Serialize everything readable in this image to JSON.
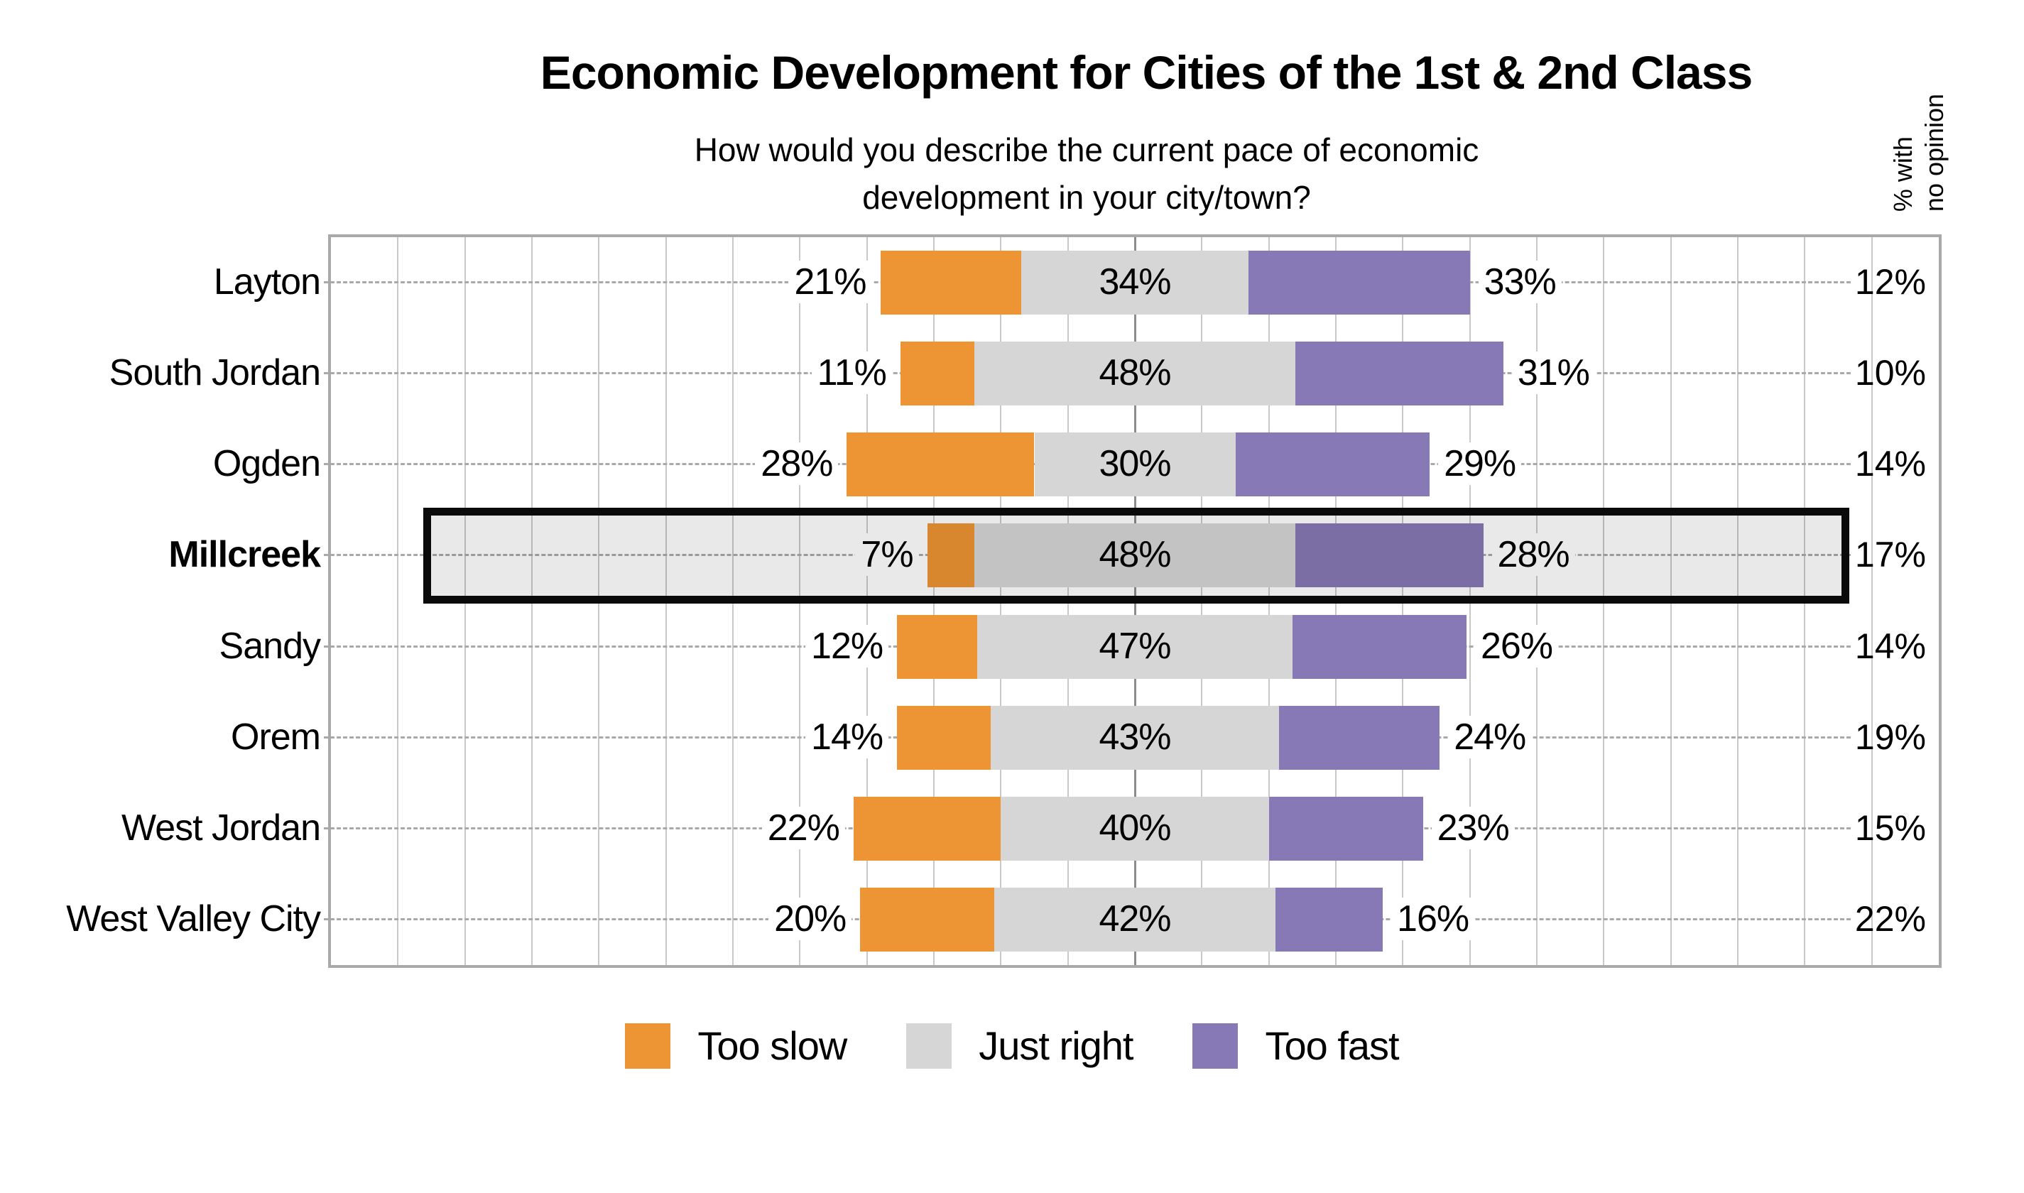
{
  "title": "Economic Development for Cities of the 1st & 2nd Class",
  "subtitle_line1": "How would you describe the current pace of economic",
  "subtitle_line2": "development in your city/town?",
  "right_axis_header_line1": "% with",
  "right_axis_header_line2": "no opinion",
  "colors": {
    "too_slow": "#ED9434",
    "just_right": "#D6D6D6",
    "too_fast": "#8679B5",
    "gridline": "#C9C9C9",
    "center_gridline": "#8C8C8C",
    "plot_frame": "#A9A9A9",
    "highlight_border": "#0A0A0A"
  },
  "legend": [
    {
      "label": "Too slow",
      "color_key": "too_slow"
    },
    {
      "label": "Just right",
      "color_key": "just_right"
    },
    {
      "label": "Too fast",
      "color_key": "too_fast"
    }
  ],
  "chart_data": {
    "type": "bar",
    "variant": "diverging-stacked-horizontal",
    "title": "Economic Development for Cities of the 1st & 2nd Class",
    "subtitle": "How would you describe the current pace of economic development in your city/town?",
    "categories": [
      "Layton",
      "South Jordan",
      "Ogden",
      "Millcreek",
      "Sandy",
      "Orem",
      "West Jordan",
      "West Valley City"
    ],
    "series": [
      {
        "name": "Too slow",
        "color_key": "too_slow",
        "values": [
          21,
          11,
          28,
          7,
          12,
          14,
          22,
          20
        ]
      },
      {
        "name": "Just right",
        "color_key": "just_right",
        "values": [
          34,
          48,
          30,
          48,
          47,
          43,
          40,
          42
        ]
      },
      {
        "name": "Too fast",
        "color_key": "too_fast",
        "values": [
          33,
          31,
          29,
          28,
          26,
          24,
          23,
          16
        ]
      }
    ],
    "no_opinion": {
      "header": "% with no opinion",
      "values": [
        12,
        10,
        14,
        17,
        14,
        19,
        15,
        22
      ]
    },
    "highlighted_category": "Millcreek",
    "xlim": [
      -120,
      120
    ],
    "gridline_step_pct": 10,
    "grid": true,
    "legend_position": "bottom",
    "value_suffix": "%"
  }
}
